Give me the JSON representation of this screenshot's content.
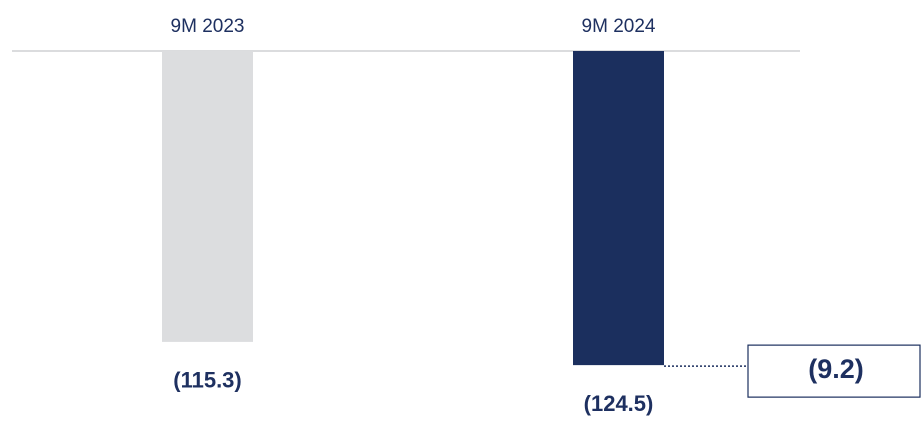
{
  "chart_data": {
    "type": "bar",
    "categories": [
      "9M 2023",
      "9M 2024"
    ],
    "values": [
      -115.3,
      -124.5
    ],
    "value_labels": [
      "(115.3)",
      "(124.5)"
    ],
    "colors": [
      "#dcdddf",
      "#1b2f5e"
    ],
    "ylim": [
      -130,
      0
    ],
    "annotation": {
      "value": -9.2,
      "label": "(9.2)"
    }
  }
}
